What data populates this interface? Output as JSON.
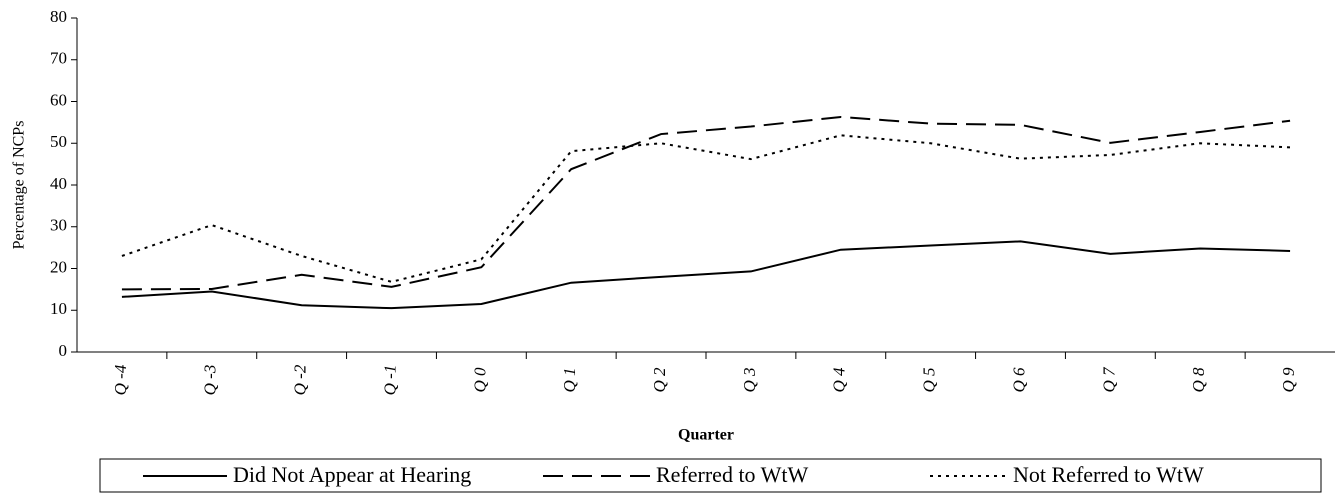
{
  "chart_data": {
    "type": "line",
    "x_label": "Quarter",
    "y_label": "Percentage of NCPs",
    "categories": [
      "Q -4",
      "Q -3",
      "Q -2",
      "Q -1",
      "Q 0",
      "Q 1",
      "Q 2",
      "Q 3",
      "Q 4",
      "Q 5",
      "Q 6",
      "Q 7",
      "Q 8",
      "Q 9"
    ],
    "series": [
      {
        "name": "Did Not Appear at Hearing",
        "color": "#000000",
        "line_style": "solid",
        "values": [
          13.2,
          14.5,
          11.2,
          10.5,
          11.5,
          16.6,
          18,
          19.3,
          24.5,
          25.5,
          26.5,
          23.5,
          24.8,
          24.2
        ]
      },
      {
        "name": "Referred to WtW",
        "color": "#000000",
        "line_style": "dashed",
        "values": [
          15,
          15.1,
          18.5,
          15.6,
          20.3,
          43.8,
          52.2,
          54,
          56.3,
          54.7,
          54.4,
          50.1,
          52.7,
          55.4
        ]
      },
      {
        "name": "Not Referred to WtW",
        "color": "#000000",
        "line_style": "dotted",
        "values": [
          23,
          30.4,
          23,
          16.8,
          22.2,
          48.1,
          50,
          46.2,
          51.9,
          50,
          46.3,
          47.2,
          50,
          49
        ]
      }
    ],
    "ylim": [
      0,
      80
    ],
    "yticks": [
      0,
      10,
      20,
      30,
      40,
      50,
      60,
      70,
      80
    ],
    "grid": false,
    "legend": "bottom"
  }
}
